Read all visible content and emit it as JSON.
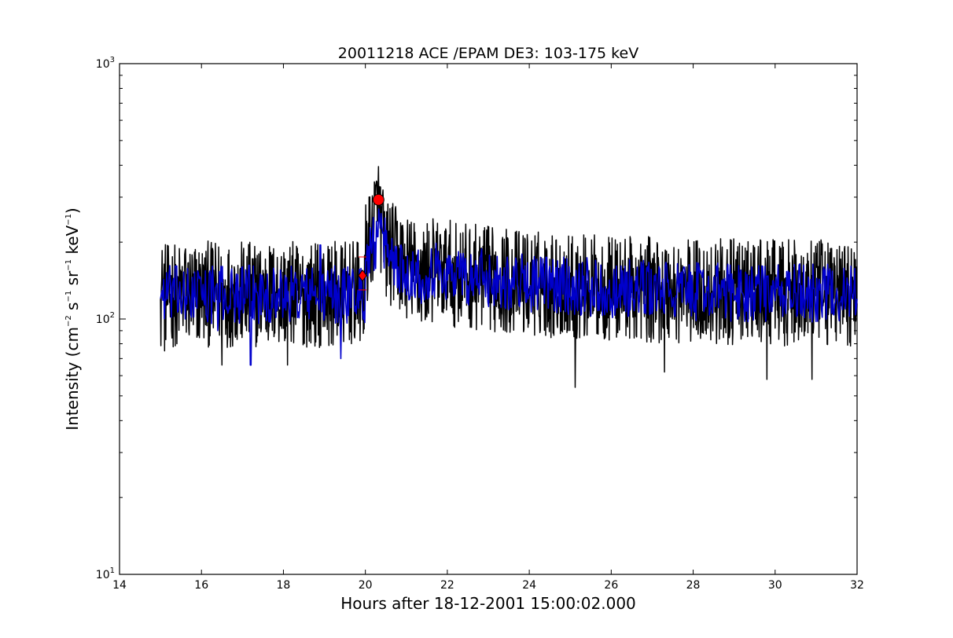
{
  "chart_data": {
    "type": "line",
    "title": "20011218 ACE /EPAM DE3: 103-175 keV",
    "xlabel": "Hours after 18-12-2001 15:00:02.000",
    "ylabel": {
      "prefix": "Intensity (cm",
      "exp1": "−2",
      "part2": " s",
      "exp2": "−1",
      "part3": " sr",
      "exp3": "−1",
      "part4": " keV",
      "exp4": "−1",
      "suffix": ")"
    },
    "xlim": [
      14,
      32
    ],
    "ylim": [
      10,
      1000
    ],
    "yscale": "log",
    "grid": false,
    "x_ticks": [
      14,
      16,
      18,
      20,
      22,
      24,
      26,
      28,
      30,
      32
    ],
    "y_ticks": [
      {
        "value": 10,
        "base": "10",
        "exp": "1"
      },
      {
        "value": 100,
        "base": "10",
        "exp": "2"
      },
      {
        "value": 1000,
        "base": "10",
        "exp": "3"
      }
    ],
    "series": [
      {
        "color": "#000000",
        "description_x_range": [
          15.0,
          32.0
        ],
        "baseline": 125,
        "spread_factor": 1.35,
        "points": [
          [
            15.0,
            120
          ],
          [
            15.05,
            145
          ],
          [
            15.1,
            75
          ],
          [
            15.2,
            160
          ],
          [
            15.3,
            130
          ],
          [
            15.4,
            80
          ],
          [
            15.6,
            185
          ],
          [
            15.8,
            95
          ],
          [
            16.0,
            120
          ],
          [
            16.0,
            67
          ],
          [
            16.2,
            150
          ],
          [
            16.5,
            66
          ],
          [
            16.8,
            160
          ],
          [
            17.1,
            90
          ],
          [
            17.5,
            155
          ],
          [
            17.9,
            100
          ],
          [
            18.1,
            66
          ],
          [
            18.4,
            145
          ],
          [
            18.8,
            130
          ],
          [
            19.0,
            110
          ],
          [
            19.2,
            150
          ],
          [
            19.6,
            120
          ],
          [
            19.9,
            150
          ],
          [
            20.0,
            175
          ],
          [
            20.15,
            210
          ],
          [
            20.3,
            280
          ],
          [
            20.4,
            230
          ],
          [
            20.5,
            190
          ],
          [
            20.7,
            175
          ],
          [
            21.0,
            160
          ],
          [
            21.3,
            150
          ],
          [
            21.6,
            145
          ],
          [
            22.0,
            140
          ],
          [
            22.5,
            135
          ],
          [
            23.0,
            130
          ],
          [
            24.0,
            125
          ],
          [
            25.12,
            54
          ],
          [
            25.5,
            125
          ],
          [
            26.0,
            120
          ],
          [
            27.3,
            62
          ],
          [
            28.0,
            120
          ],
          [
            29.0,
            118
          ],
          [
            29.8,
            58
          ],
          [
            30.5,
            120
          ],
          [
            30.9,
            58
          ],
          [
            31.5,
            118
          ],
          [
            32.0,
            115
          ]
        ]
      },
      {
        "color": "#0000cc",
        "description_x_range": [
          15.0,
          32.0
        ],
        "baseline": 125,
        "spread_factor": 1.18,
        "points": [
          [
            15.0,
            120
          ],
          [
            15.3,
            140
          ],
          [
            15.6,
            100
          ],
          [
            16.0,
            125
          ],
          [
            16.4,
            90
          ],
          [
            17.0,
            160
          ],
          [
            17.2,
            66
          ],
          [
            17.6,
            150
          ],
          [
            18.0,
            120
          ],
          [
            18.5,
            135
          ],
          [
            18.9,
            195
          ],
          [
            19.2,
            110
          ],
          [
            19.4,
            70
          ],
          [
            19.7,
            150
          ],
          [
            20.0,
            170
          ],
          [
            20.3,
            210
          ],
          [
            20.5,
            195
          ],
          [
            20.8,
            160
          ],
          [
            21.5,
            145
          ],
          [
            22.5,
            135
          ],
          [
            24.0,
            125
          ],
          [
            26.0,
            120
          ],
          [
            28.0,
            120
          ],
          [
            30.0,
            118
          ],
          [
            32.0,
            120
          ]
        ]
      }
    ],
    "markers": [
      {
        "shape": "circle",
        "x": 20.32,
        "y": 293,
        "color": "#ff0000"
      },
      {
        "shape": "diamond",
        "x": 19.93,
        "y": 148,
        "color": "#ff0000"
      }
    ],
    "error_bars": [
      {
        "x": 19.93,
        "y": 175
      },
      {
        "x": 19.93,
        "y": 130
      }
    ]
  }
}
